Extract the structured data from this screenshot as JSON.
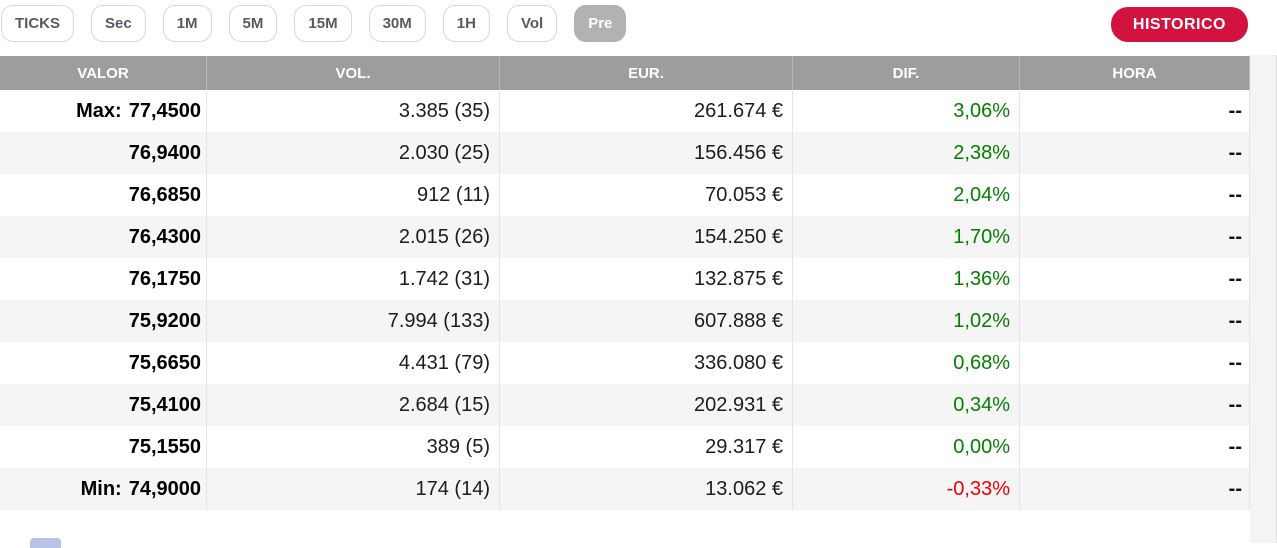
{
  "toolbar": {
    "buttons": [
      {
        "label": "TICKS",
        "active": false
      },
      {
        "label": "Sec",
        "active": false
      },
      {
        "label": "1M",
        "active": false
      },
      {
        "label": "5M",
        "active": false
      },
      {
        "label": "15M",
        "active": false
      },
      {
        "label": "30M",
        "active": false
      },
      {
        "label": "1H",
        "active": false
      },
      {
        "label": "Vol",
        "active": false
      },
      {
        "label": "Pre",
        "active": true
      }
    ],
    "historico_label": "HISTORICO"
  },
  "table": {
    "columns": [
      "VALOR",
      "VOL.",
      "EUR.",
      "DIF.",
      "HORA"
    ],
    "rows": [
      {
        "prefix": "Max:",
        "valor": "77,4500",
        "vol": "3.385 (35)",
        "eur": "261.674 €",
        "dif": "3,06%",
        "dif_state": "up",
        "hora": "--"
      },
      {
        "prefix": "",
        "valor": "76,9400",
        "vol": "2.030 (25)",
        "eur": "156.456 €",
        "dif": "2,38%",
        "dif_state": "up",
        "hora": "--"
      },
      {
        "prefix": "",
        "valor": "76,6850",
        "vol": "912 (11)",
        "eur": "70.053 €",
        "dif": "2,04%",
        "dif_state": "up",
        "hora": "--"
      },
      {
        "prefix": "",
        "valor": "76,4300",
        "vol": "2.015 (26)",
        "eur": "154.250 €",
        "dif": "1,70%",
        "dif_state": "up",
        "hora": "--"
      },
      {
        "prefix": "",
        "valor": "76,1750",
        "vol": "1.742 (31)",
        "eur": "132.875 €",
        "dif": "1,36%",
        "dif_state": "up",
        "hora": "--"
      },
      {
        "prefix": "",
        "valor": "75,9200",
        "vol": "7.994 (133)",
        "eur": "607.888 €",
        "dif": "1,02%",
        "dif_state": "up",
        "hora": "--"
      },
      {
        "prefix": "",
        "valor": "75,6650",
        "vol": "4.431 (79)",
        "eur": "336.080 €",
        "dif": "0,68%",
        "dif_state": "up",
        "hora": "--"
      },
      {
        "prefix": "",
        "valor": "75,4100",
        "vol": "2.684 (15)",
        "eur": "202.931 €",
        "dif": "0,34%",
        "dif_state": "up",
        "hora": "--"
      },
      {
        "prefix": "",
        "valor": "75,1550",
        "vol": "389 (5)",
        "eur": "29.317 €",
        "dif": "0,00%",
        "dif_state": "up",
        "hora": "--"
      },
      {
        "prefix": "Min:",
        "valor": "74,9000",
        "vol": "174 (14)",
        "eur": "13.062 €",
        "dif": "-0,33%",
        "dif_state": "down",
        "hora": "--"
      }
    ]
  },
  "colors": {
    "accent": "#d2123f",
    "positive": "#067d00",
    "negative": "#f30000",
    "header_bg": "#9d9d9d",
    "active_button": "#b2b2b2",
    "alt_row": "#f5f5f5",
    "toolbar_text": "#565b61",
    "body_text": "#1c1c1c"
  }
}
